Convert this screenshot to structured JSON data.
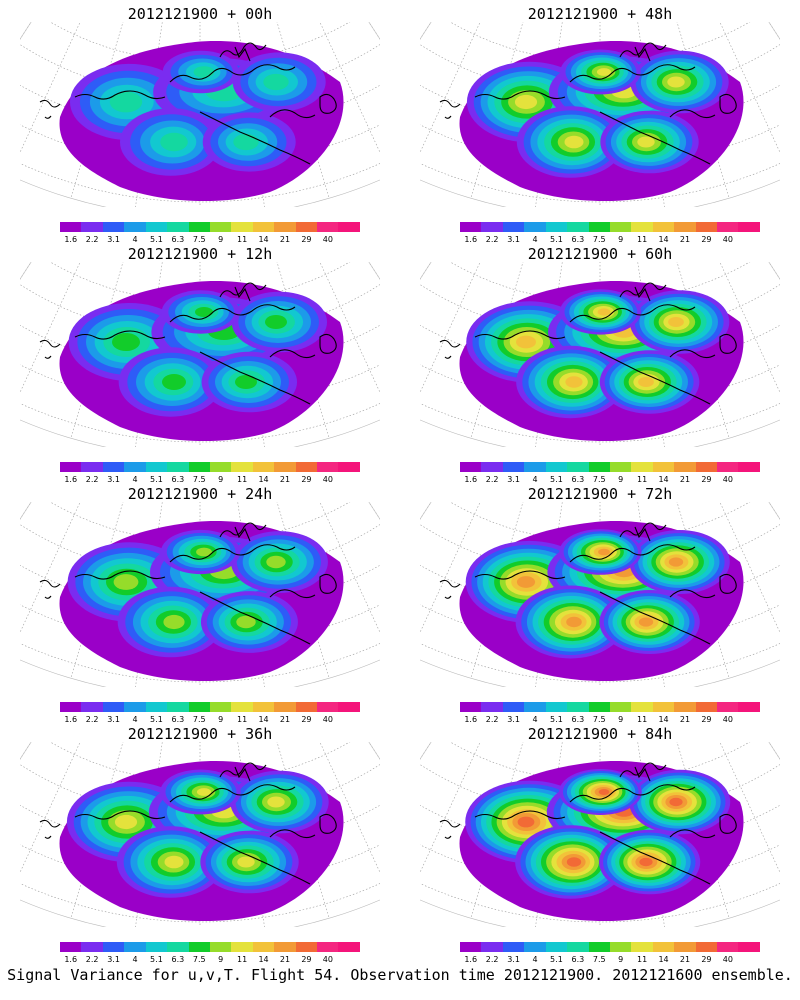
{
  "colorbar": {
    "labels": [
      "1.6",
      "2.2",
      "3.1",
      "4",
      "5.1",
      "6.3",
      "7.5",
      "9",
      "11",
      "14",
      "21",
      "29",
      "40"
    ],
    "colors": [
      "#9a00c8",
      "#7a2cf0",
      "#2e5cf7",
      "#1c9be9",
      "#12c8d0",
      "#14d8a0",
      "#12cc2a",
      "#96dc2a",
      "#e4e23c",
      "#f2c23a",
      "#f29a36",
      "#f26a36",
      "#f42680",
      "#f4147a"
    ]
  },
  "panels": [
    {
      "title": "2012121900 + 00h",
      "level": 0.25
    },
    {
      "title": "2012121900 + 48h",
      "level": 0.6
    },
    {
      "title": "2012121900 + 12h",
      "level": 0.35
    },
    {
      "title": "2012121900 + 60h",
      "level": 0.68
    },
    {
      "title": "2012121900 + 24h",
      "level": 0.45
    },
    {
      "title": "2012121900 + 72h",
      "level": 0.78
    },
    {
      "title": "2012121900 + 36h",
      "level": 0.52
    },
    {
      "title": "2012121900 + 84h",
      "level": 0.88
    }
  ],
  "caption": "Signal Variance for u,v,T. Flight 54. Observation time 2012121900. 2012121600 ensemble."
}
